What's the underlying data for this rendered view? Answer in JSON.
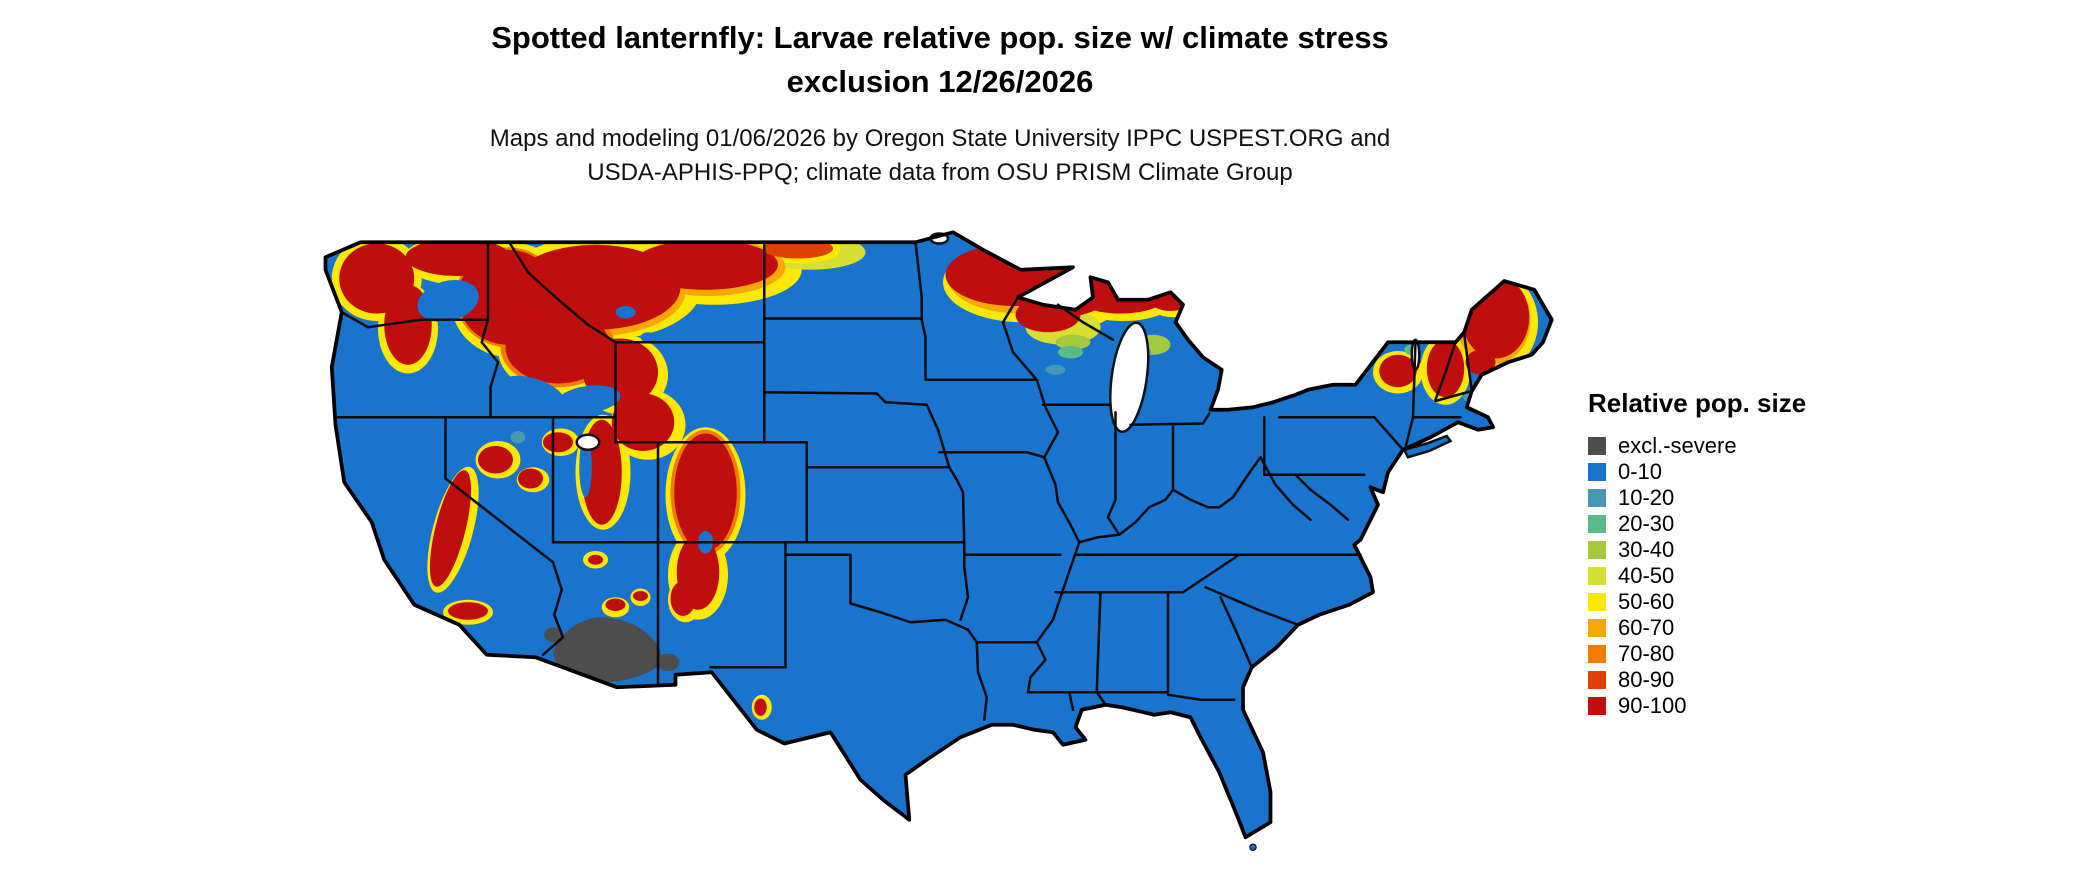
{
  "title": {
    "line1": "Spotted lanternfly: Larvae relative pop. size w/ climate stress",
    "line2": "exclusion 12/26/2026"
  },
  "subtitle": {
    "line1": "Maps and modeling 01/06/2026 by Oregon State University IPPC USPEST.ORG and",
    "line2": "USDA-APHIS-PPQ; climate data from OSU PRISM Climate Group"
  },
  "legend": {
    "title": "Relative pop. size",
    "items": [
      {
        "label": "excl.-severe",
        "color": "#4D4D4D"
      },
      {
        "label": "0-10",
        "color": "#1874CD"
      },
      {
        "label": "10-20",
        "color": "#4698B5"
      },
      {
        "label": "20-30",
        "color": "#5ABA8A"
      },
      {
        "label": "30-40",
        "color": "#A4C93F"
      },
      {
        "label": "40-50",
        "color": "#D7DE32"
      },
      {
        "label": "50-60",
        "color": "#FFE800"
      },
      {
        "label": "60-70",
        "color": "#F6A800"
      },
      {
        "label": "70-80",
        "color": "#EF7D00"
      },
      {
        "label": "80-90",
        "color": "#E04000"
      },
      {
        "label": "90-100",
        "color": "#C00D0D"
      }
    ]
  },
  "palette": {
    "land_base": "#1874CD",
    "severe_gray": "#4D4D4D",
    "red_90_100": "#C00D0D",
    "red_80_90": "#E04000",
    "orange_70_80": "#EF7D00",
    "orange_60_70": "#F6A800",
    "yellow_50_60": "#FFE800",
    "lime_40_50": "#D7DE32",
    "green_30_40": "#A4C93F",
    "green_20_30": "#5ABA8A",
    "teal_10_20": "#4698B5",
    "lake_white": "#FFFFFF"
  }
}
